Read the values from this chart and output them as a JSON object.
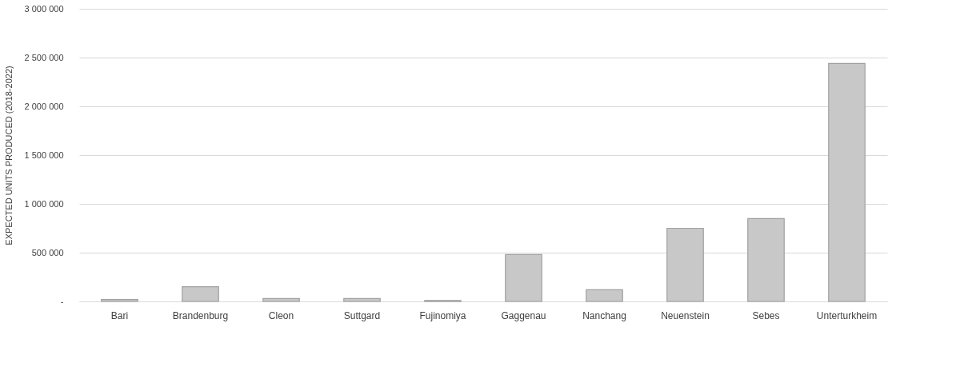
{
  "chart_data": {
    "type": "bar",
    "ylabel": "EXPECTED UNITS PRODUCED (2018-2022)",
    "categories": [
      "Bari",
      "Brandenburg",
      "Cleon",
      "Suttgard",
      "Fujinomiya",
      "Gaggenau",
      "Nanchang",
      "Neuenstein",
      "Sebes",
      "Unterturkheim"
    ],
    "values": [
      20000,
      150000,
      30000,
      30000,
      10000,
      480000,
      120000,
      750000,
      850000,
      2440000
    ],
    "color": "#c8c8c8",
    "ylim": [
      0,
      3000000
    ],
    "yticks": [
      {
        "value": 0,
        "label": "-"
      },
      {
        "value": 500000,
        "label": "500 000"
      },
      {
        "value": 1000000,
        "label": "1 000 000"
      },
      {
        "value": 1500000,
        "label": "1 500 000"
      },
      {
        "value": 2000000,
        "label": "2 000 000"
      },
      {
        "value": 2500000,
        "label": "2 500 000"
      },
      {
        "value": 3000000,
        "label": "3 000 000"
      }
    ],
    "grid": "y"
  }
}
